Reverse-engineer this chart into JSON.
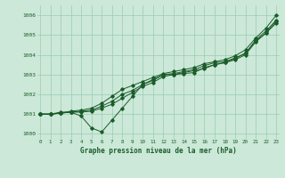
{
  "title": "Graphe pression niveau de la mer (hPa)",
  "background_color": "#cce8d8",
  "grid_color": "#99ccb0",
  "line_color": "#1a5c2a",
  "xlim": [
    -0.3,
    23.3
  ],
  "ylim": [
    999.75,
    1006.5
  ],
  "yticks": [
    1000,
    1001,
    1002,
    1003,
    1004,
    1005,
    1006
  ],
  "xticks": [
    0,
    1,
    2,
    3,
    4,
    5,
    6,
    7,
    8,
    9,
    10,
    11,
    12,
    13,
    14,
    15,
    16,
    17,
    18,
    19,
    20,
    21,
    22,
    23
  ],
  "line1": [
    1001.0,
    1001.0,
    1001.1,
    1001.1,
    1000.9,
    1000.3,
    1000.1,
    1000.7,
    1001.3,
    1001.9,
    1002.5,
    1002.7,
    1003.0,
    1003.0,
    1003.1,
    1003.2,
    1003.3,
    1003.5,
    1003.6,
    1003.8,
    1004.1,
    1004.7,
    1005.1,
    1005.6
  ],
  "line2": [
    1001.0,
    1001.0,
    1001.05,
    1001.1,
    1001.1,
    1001.15,
    1001.3,
    1001.5,
    1001.8,
    1002.1,
    1002.4,
    1002.6,
    1002.9,
    1003.0,
    1003.05,
    1003.1,
    1003.35,
    1003.5,
    1003.6,
    1003.75,
    1004.0,
    1004.65,
    1005.1,
    1005.7
  ],
  "line3": [
    1001.0,
    1001.0,
    1001.05,
    1001.1,
    1001.15,
    1001.2,
    1001.4,
    1001.65,
    1002.0,
    1002.2,
    1002.5,
    1002.75,
    1003.0,
    1003.05,
    1003.15,
    1003.25,
    1003.45,
    1003.6,
    1003.65,
    1003.85,
    1004.05,
    1004.75,
    1005.2,
    1005.75
  ],
  "line4": [
    1001.0,
    1001.0,
    1001.05,
    1001.15,
    1001.2,
    1001.3,
    1001.55,
    1001.9,
    1002.25,
    1002.45,
    1002.65,
    1002.85,
    1003.05,
    1003.15,
    1003.25,
    1003.35,
    1003.55,
    1003.65,
    1003.75,
    1003.95,
    1004.25,
    1004.85,
    1005.35,
    1006.0
  ]
}
